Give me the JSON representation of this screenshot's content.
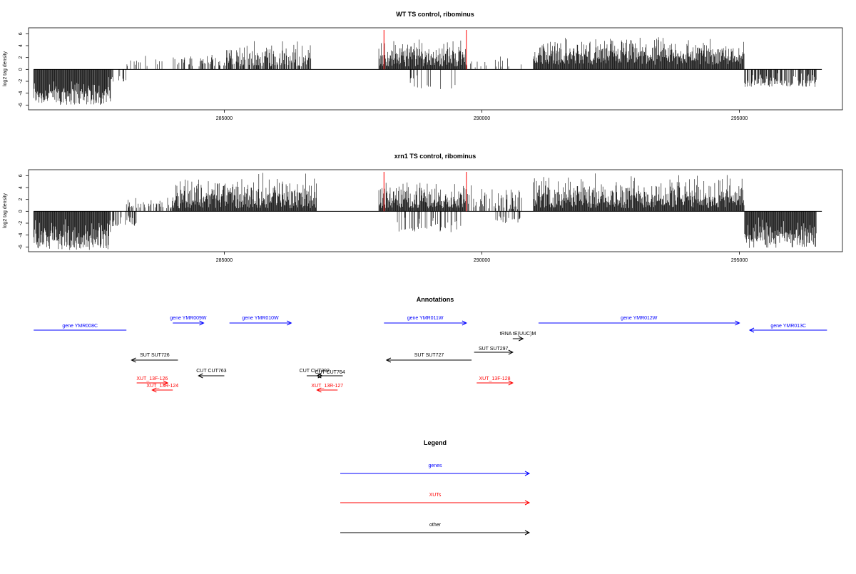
{
  "colors": {
    "gene": "#0000ff",
    "xut": "#ff0000",
    "other": "#000000",
    "marker": "#ff0000"
  },
  "chart_data": [
    {
      "type": "bar",
      "title": "WT TS control, ribominus",
      "ylabel": "log2 tag density",
      "xlim": [
        281200,
        297000
      ],
      "ylim": [
        -6.8,
        7.0
      ],
      "xticks": [
        285000,
        290000,
        295000
      ],
      "yticks": [
        -6,
        -4,
        -2,
        0,
        2,
        4,
        6
      ],
      "grid": false,
      "markers": [
        288100,
        289700
      ],
      "segments": [
        {
          "from": 281300,
          "to": 282800,
          "min": -6.0,
          "max": -1.0,
          "density": 1.0
        },
        {
          "from": 282800,
          "to": 283100,
          "min": -2.5,
          "max": -0.5,
          "density": 0.25
        },
        {
          "from": 283100,
          "to": 284200,
          "min": 0.4,
          "max": 2.5,
          "density": 0.2
        },
        {
          "from": 284200,
          "to": 285000,
          "min": 0.5,
          "max": 3.5,
          "density": 0.4
        },
        {
          "from": 285000,
          "to": 286700,
          "min": 0.5,
          "max": 5.0,
          "density": 0.7
        },
        {
          "from": 288000,
          "to": 289700,
          "min": 0.5,
          "max": 5.5,
          "density": 1.0
        },
        {
          "from": 288600,
          "to": 289600,
          "min": -3.5,
          "max": -0.5,
          "density": 0.15
        },
        {
          "from": 289700,
          "to": 290800,
          "min": 0.3,
          "max": 2.5,
          "density": 0.15
        },
        {
          "from": 291000,
          "to": 295100,
          "min": 0.8,
          "max": 5.8,
          "density": 1.0
        },
        {
          "from": 295100,
          "to": 296500,
          "min": -3.0,
          "max": -0.5,
          "density": 0.7
        }
      ]
    },
    {
      "type": "bar",
      "title": "xrn1 TS control, ribominus",
      "ylabel": "log2 tag density",
      "xlim": [
        281200,
        297000
      ],
      "ylim": [
        -6.8,
        7.0
      ],
      "xticks": [
        285000,
        290000,
        295000
      ],
      "yticks": [
        -6,
        -4,
        -2,
        0,
        2,
        4,
        6
      ],
      "grid": false,
      "markers": [
        288100,
        289700
      ],
      "segments": [
        {
          "from": 281300,
          "to": 282800,
          "min": -6.5,
          "max": -1.0,
          "density": 1.0
        },
        {
          "from": 282800,
          "to": 283300,
          "min": -2.5,
          "max": -0.5,
          "density": 0.4
        },
        {
          "from": 283100,
          "to": 284000,
          "min": 0.4,
          "max": 2.5,
          "density": 0.4
        },
        {
          "from": 284000,
          "to": 286800,
          "min": 0.5,
          "max": 6.8,
          "density": 1.0
        },
        {
          "from": 288000,
          "to": 289700,
          "min": 0.5,
          "max": 5.5,
          "density": 1.0
        },
        {
          "from": 288300,
          "to": 289600,
          "min": -3.5,
          "max": -0.5,
          "density": 0.35
        },
        {
          "from": 289700,
          "to": 290800,
          "min": 0.3,
          "max": 4.5,
          "density": 0.4
        },
        {
          "from": 290200,
          "to": 290800,
          "min": -2.0,
          "max": -0.3,
          "density": 0.2
        },
        {
          "from": 291000,
          "to": 295100,
          "min": 0.5,
          "max": 6.5,
          "density": 1.0
        },
        {
          "from": 295100,
          "to": 296500,
          "min": -6.2,
          "max": -1.0,
          "density": 1.0
        }
      ]
    }
  ],
  "annotations": {
    "title": "Annotations",
    "items": [
      {
        "label": "gene YMR008C",
        "kind": "gene",
        "start": 281300,
        "end": 283100,
        "dir": "none",
        "row": 1
      },
      {
        "label": "gene YMR009W",
        "kind": "gene",
        "start": 284000,
        "end": 284600,
        "dir": "right",
        "row": 0
      },
      {
        "label": "gene YMR010W",
        "kind": "gene",
        "start": 285100,
        "end": 286300,
        "dir": "right",
        "row": 0
      },
      {
        "label": "gene YMR011W",
        "kind": "gene",
        "start": 288100,
        "end": 289700,
        "dir": "right",
        "row": 0
      },
      {
        "label": "gene YMR012W",
        "kind": "gene",
        "start": 291100,
        "end": 295000,
        "dir": "right",
        "row": 0
      },
      {
        "label": "gene YMR013C",
        "kind": "gene",
        "start": 295200,
        "end": 296700,
        "dir": "left",
        "row": 1
      },
      {
        "label": "tRNA tE(UUC)M",
        "kind": "other",
        "start": 290600,
        "end": 290800,
        "dir": "right",
        "row": 2
      },
      {
        "label": "SUT SUT726",
        "kind": "other",
        "start": 283200,
        "end": 284100,
        "dir": "left",
        "row": 4
      },
      {
        "label": "SUT SUT727",
        "kind": "other",
        "start": 288150,
        "end": 289800,
        "dir": "left",
        "row": 4
      },
      {
        "label": "SUT SUT297",
        "kind": "other",
        "start": 289850,
        "end": 290600,
        "dir": "right",
        "row": 3
      },
      {
        "label": "CUT CUT763",
        "kind": "other",
        "start": 284500,
        "end": 285000,
        "dir": "left",
        "row": 5
      },
      {
        "label": "CUT CUT292",
        "kind": "other",
        "start": 286600,
        "end": 286900,
        "dir": "right",
        "row": 5
      },
      {
        "label": "CUT CUT764",
        "kind": "other",
        "start": 286800,
        "end": 287300,
        "dir": "left",
        "row": 6
      },
      {
        "label": "XUT_13F-126",
        "kind": "xut",
        "start": 283300,
        "end": 283900,
        "dir": "right",
        "row": 7
      },
      {
        "label": "XUT_13R-124",
        "kind": "xut",
        "start": 283600,
        "end": 284000,
        "dir": "left",
        "row": 8
      },
      {
        "label": "XUT_13R-127",
        "kind": "xut",
        "start": 286800,
        "end": 287200,
        "dir": "left",
        "row": 8
      },
      {
        "label": "XUT_13F-128",
        "kind": "xut",
        "start": 289900,
        "end": 290600,
        "dir": "right",
        "row": 7
      }
    ]
  },
  "legend": {
    "title": "Legend",
    "items": [
      {
        "label": "genes",
        "kind": "gene"
      },
      {
        "label": "XUTs",
        "kind": "xut"
      },
      {
        "label": "other",
        "kind": "other"
      }
    ]
  }
}
